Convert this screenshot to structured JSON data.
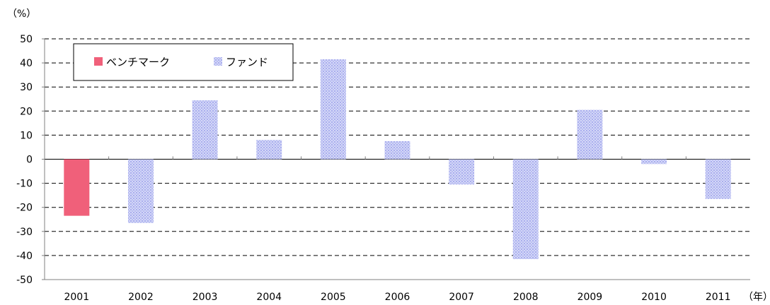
{
  "chart_data": {
    "type": "bar",
    "y_unit": "（%）",
    "x_unit": "（年）",
    "categories": [
      "2001",
      "2002",
      "2003",
      "2004",
      "2005",
      "2006",
      "2007",
      "2008",
      "2009",
      "2010",
      "2011"
    ],
    "series": [
      {
        "name": "ベンチマーク",
        "color": "#f0607a",
        "values": [
          -23.5,
          null,
          null,
          null,
          null,
          null,
          null,
          null,
          null,
          null,
          null
        ]
      },
      {
        "name": "ファンド",
        "color": "#c4c8f4",
        "values": [
          null,
          -26.5,
          24.5,
          8,
          41.5,
          7.5,
          -10.5,
          -41.5,
          20.5,
          -2,
          -16.5
        ]
      }
    ],
    "ylim": [
      -50,
      50
    ],
    "yticks": [
      50,
      40,
      30,
      20,
      10,
      0,
      -10,
      -20,
      -30,
      -40,
      -50
    ],
    "grid": true,
    "legend": "top-left"
  }
}
